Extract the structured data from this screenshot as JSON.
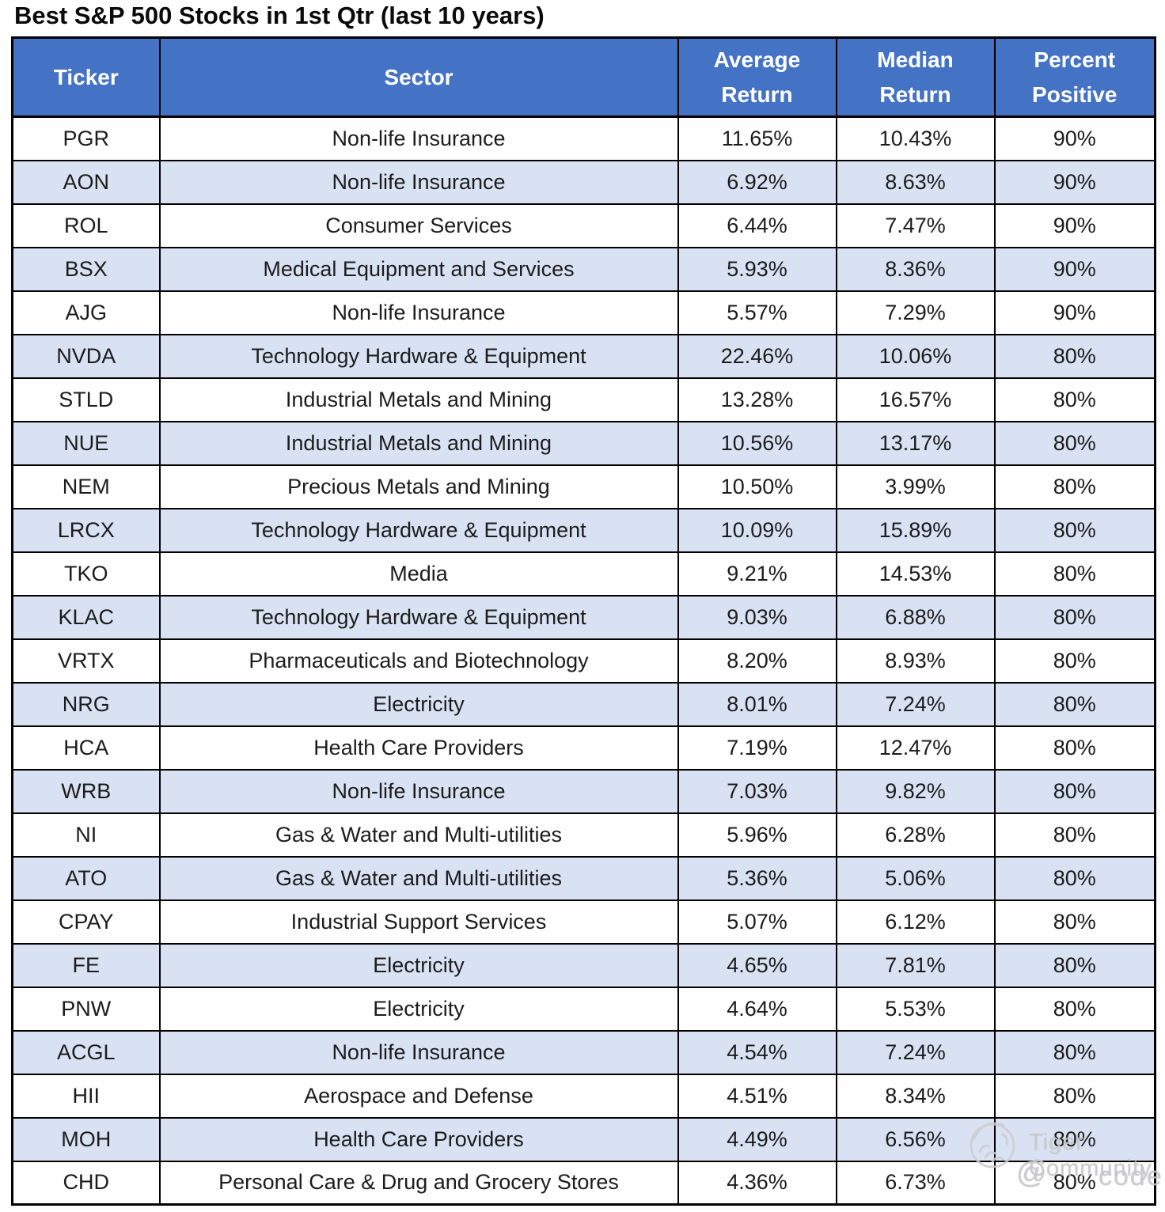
{
  "chart_data": {
    "type": "table",
    "title": "Best S&P 500 Stocks in 1st Qtr (last 10 years)",
    "columns": [
      "Ticker",
      "Sector",
      "Average Return",
      "Median Return",
      "Percent Positive"
    ],
    "rows": [
      [
        "PGR",
        "Non-life Insurance",
        "11.65%",
        "10.43%",
        "90%"
      ],
      [
        "AON",
        "Non-life Insurance",
        "6.92%",
        "8.63%",
        "90%"
      ],
      [
        "ROL",
        "Consumer Services",
        "6.44%",
        "7.47%",
        "90%"
      ],
      [
        "BSX",
        "Medical Equipment and Services",
        "5.93%",
        "8.36%",
        "90%"
      ],
      [
        "AJG",
        "Non-life Insurance",
        "5.57%",
        "7.29%",
        "90%"
      ],
      [
        "NVDA",
        "Technology Hardware & Equipment",
        "22.46%",
        "10.06%",
        "80%"
      ],
      [
        "STLD",
        "Industrial Metals and Mining",
        "13.28%",
        "16.57%",
        "80%"
      ],
      [
        "NUE",
        "Industrial Metals and Mining",
        "10.56%",
        "13.17%",
        "80%"
      ],
      [
        "NEM",
        "Precious Metals and Mining",
        "10.50%",
        "3.99%",
        "80%"
      ],
      [
        "LRCX",
        "Technology Hardware & Equipment",
        "10.09%",
        "15.89%",
        "80%"
      ],
      [
        "TKO",
        "Media",
        "9.21%",
        "14.53%",
        "80%"
      ],
      [
        "KLAC",
        "Technology Hardware & Equipment",
        "9.03%",
        "6.88%",
        "80%"
      ],
      [
        "VRTX",
        "Pharmaceuticals and Biotechnology",
        "8.20%",
        "8.93%",
        "80%"
      ],
      [
        "NRG",
        "Electricity",
        "8.01%",
        "7.24%",
        "80%"
      ],
      [
        "HCA",
        "Health Care Providers",
        "7.19%",
        "12.47%",
        "80%"
      ],
      [
        "WRB",
        "Non-life Insurance",
        "7.03%",
        "9.82%",
        "80%"
      ],
      [
        "NI",
        "Gas & Water and Multi-utilities",
        "5.96%",
        "6.28%",
        "80%"
      ],
      [
        "ATO",
        "Gas & Water and Multi-utilities",
        "5.36%",
        "5.06%",
        "80%"
      ],
      [
        "CPAY",
        "Industrial Support Services",
        "5.07%",
        "6.12%",
        "80%"
      ],
      [
        "FE",
        "Electricity",
        "4.65%",
        "7.81%",
        "80%"
      ],
      [
        "PNW",
        "Electricity",
        "4.64%",
        "5.53%",
        "80%"
      ],
      [
        "ACGL",
        "Non-life Insurance",
        "4.54%",
        "7.24%",
        "80%"
      ],
      [
        "HII",
        "Aerospace and Defense",
        "4.51%",
        "8.34%",
        "80%"
      ],
      [
        "MOH",
        "Health Care Providers",
        "4.49%",
        "6.56%",
        "80%"
      ],
      [
        "CHD",
        "Personal Care & Drug and Grocery Stores",
        "4.36%",
        "6.73%",
        "80%"
      ]
    ]
  },
  "header_display": [
    {
      "line1": "Ticker"
    },
    {
      "line1": "Sector"
    },
    {
      "line1": "Average",
      "line2": "Return"
    },
    {
      "line1": "Median",
      "line2": "Return"
    },
    {
      "line1": "Percent",
      "line2": "Positive"
    }
  ],
  "watermark": {
    "community": "Tiger Community",
    "handle_prefix": "@",
    "handle_suffix": "code",
    "logo": "tiger-paw-circle"
  },
  "colors": {
    "header_bg": "#4472C4",
    "header_text": "#FFFFFF",
    "row_bg": "#FEFEFE",
    "row_alt_bg": "#D9E2F3",
    "border": "#000000",
    "watermark": "#CDCDD0"
  }
}
